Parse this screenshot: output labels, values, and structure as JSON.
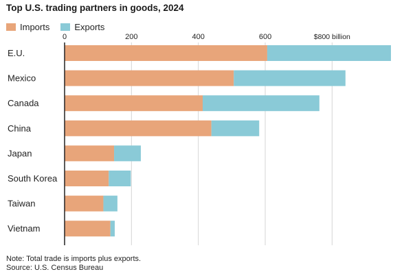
{
  "colors": {
    "imports": "#e8a57a",
    "exports": "#8acad7",
    "grid": "#d6d6d6",
    "axis": "#222222"
  },
  "legend": {
    "imports_label": "Imports",
    "exports_label": "Exports"
  },
  "footer": {
    "note": "Note: Total trade is imports plus exports.",
    "source": "Source: U.S. Census Bureau"
  },
  "chart_data": {
    "type": "bar",
    "orientation": "horizontal",
    "stacked": true,
    "title": "Top U.S. trading partners in goods, 2024",
    "categories": [
      "E.U.",
      "Mexico",
      "Canada",
      "China",
      "Japan",
      "South Korea",
      "Taiwan",
      "Vietnam"
    ],
    "series": [
      {
        "name": "Imports",
        "values": [
          606,
          506,
          413,
          439,
          148,
          132,
          116,
          137
        ]
      },
      {
        "name": "Exports",
        "values": [
          370,
          334,
          349,
          143,
          80,
          66,
          42,
          13
        ]
      }
    ],
    "xlim": [
      0,
      976
    ],
    "xticks": [
      {
        "value": 0,
        "label": "0"
      },
      {
        "value": 200,
        "label": "200"
      },
      {
        "value": 400,
        "label": "400"
      },
      {
        "value": 600,
        "label": "600"
      },
      {
        "value": 800,
        "label": "$800 billion"
      }
    ],
    "grid": true,
    "legend_position": "top-left"
  }
}
